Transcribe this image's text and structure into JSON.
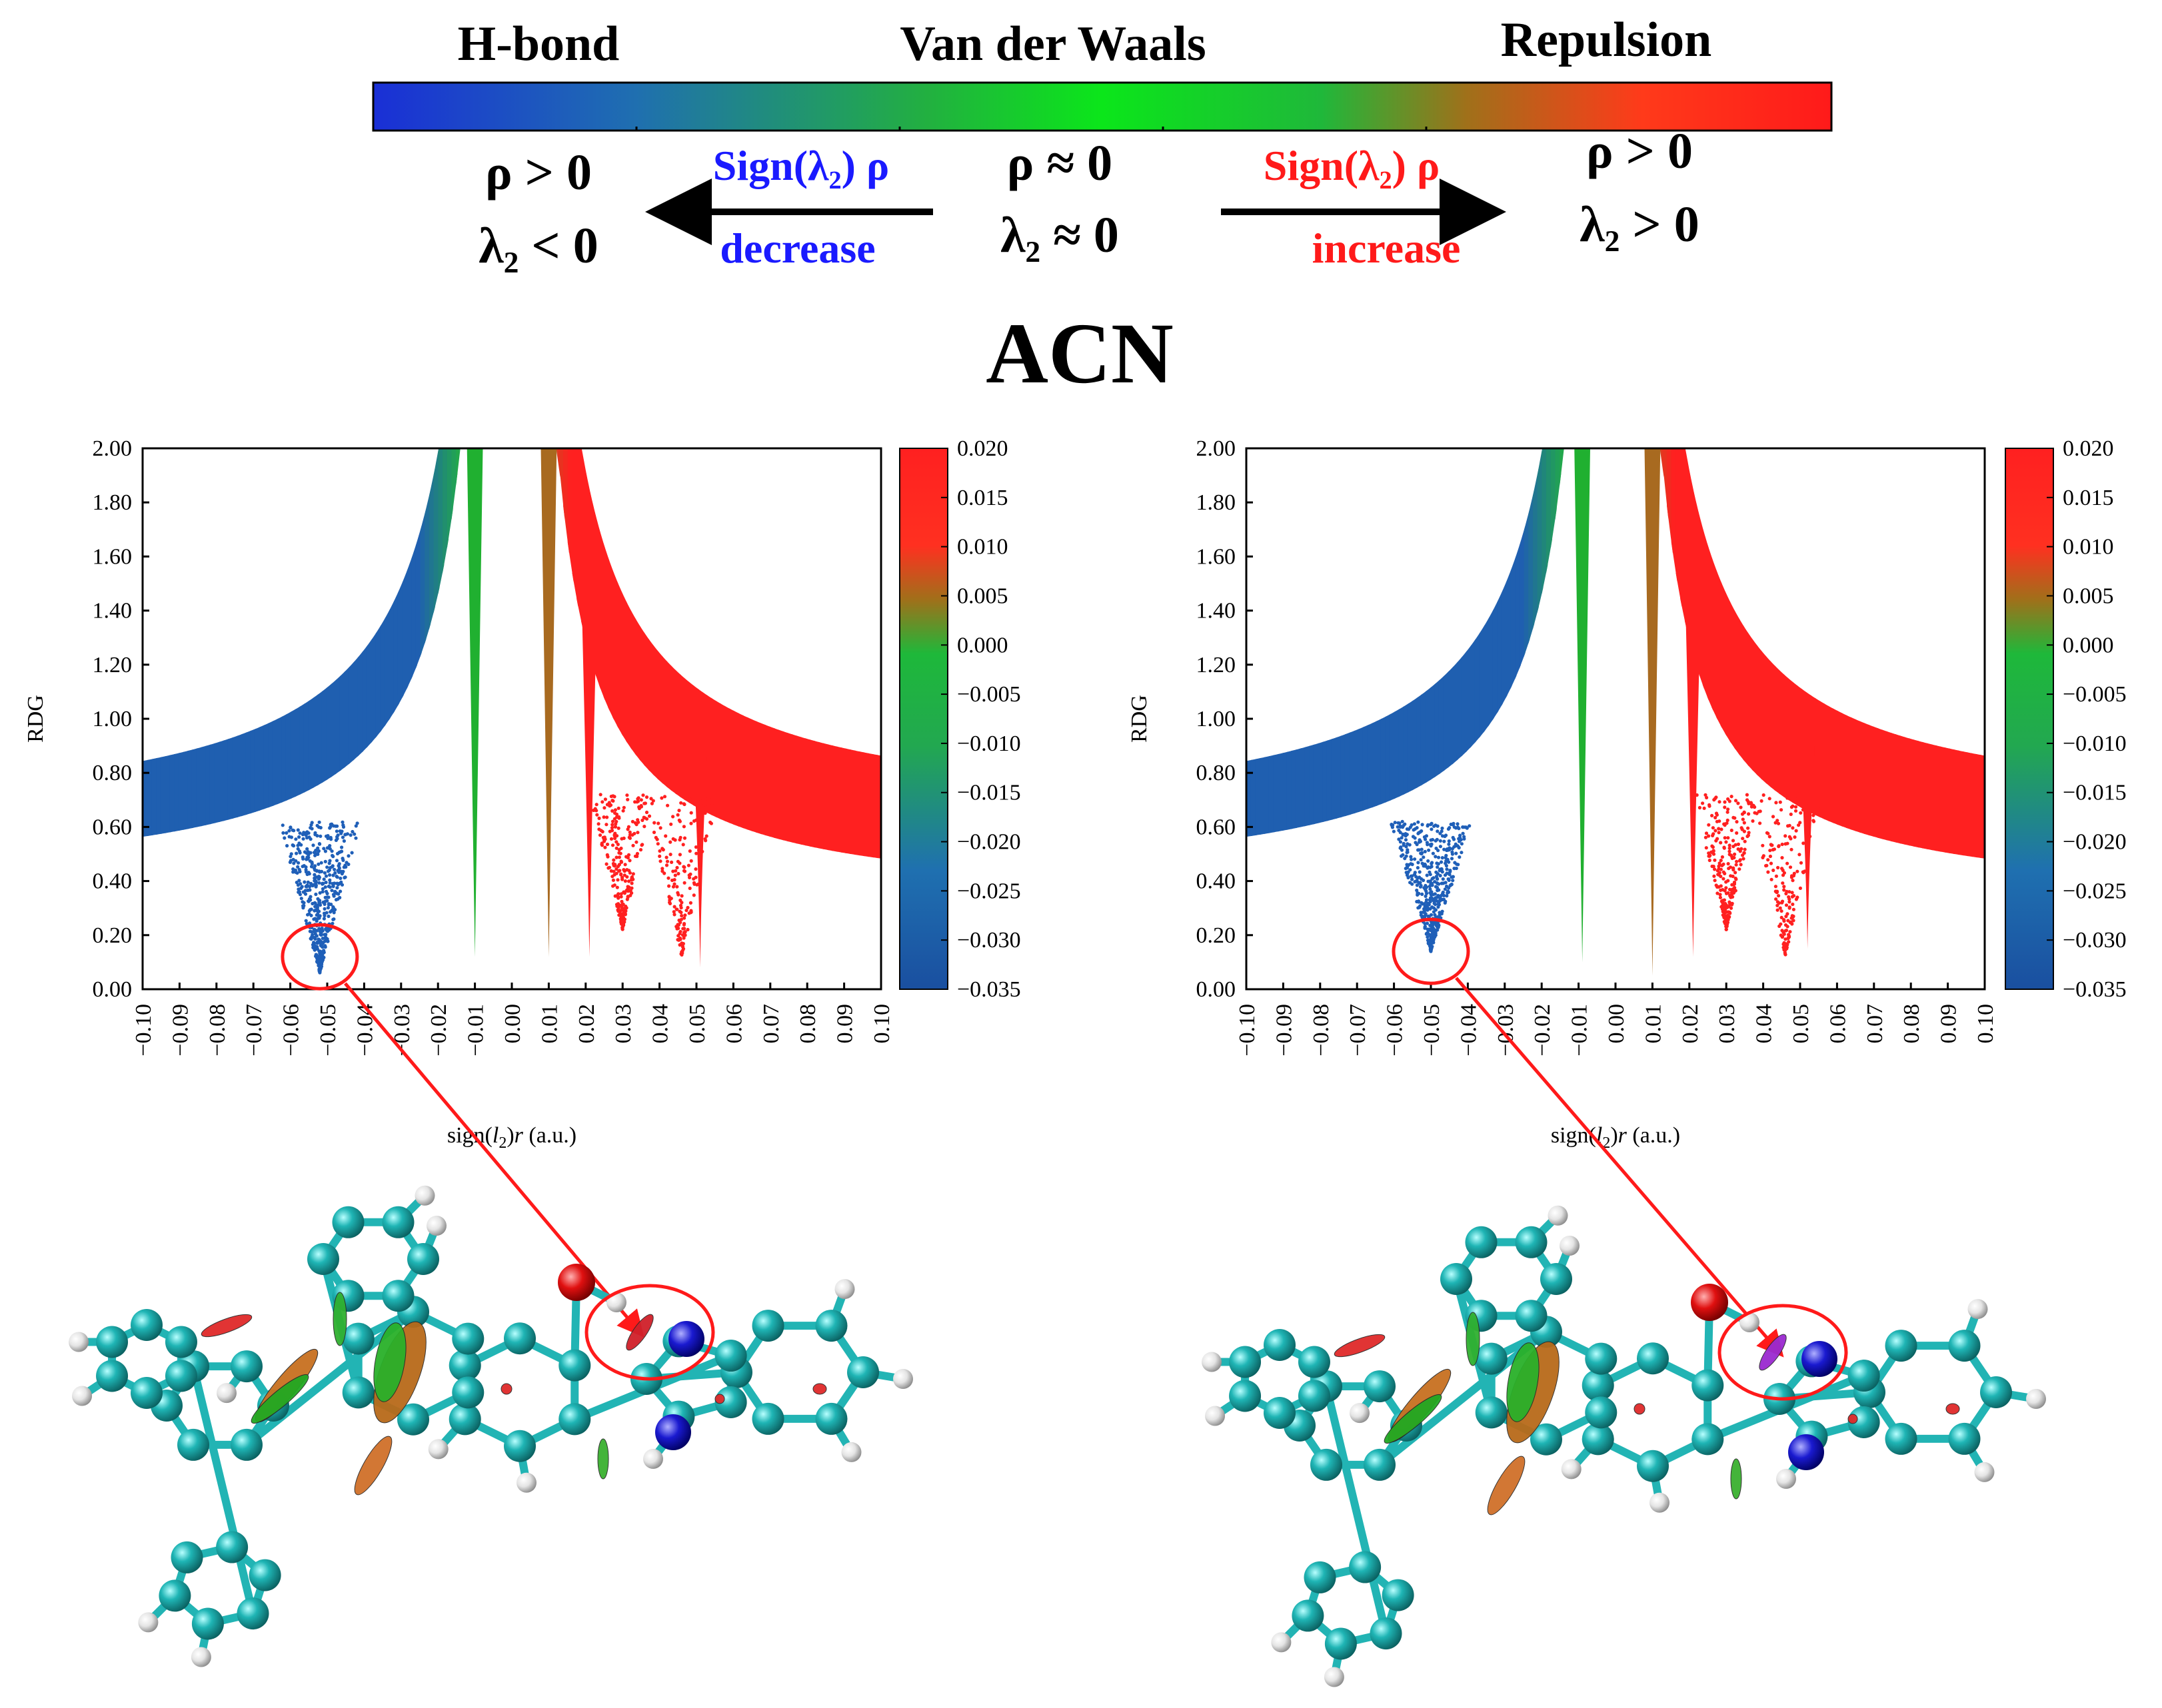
{
  "legend": {
    "labels": {
      "hbond": "H-bond",
      "vdw": "Van der Waals",
      "repulsion": "Repulsion"
    },
    "gradient_colors": [
      "#1a2fd6",
      "#1f6fb0",
      "#22b040",
      "#0be61a",
      "#1fb83a",
      "#d0701a",
      "#ff2a1a",
      "#ff1a1a"
    ],
    "left": {
      "line1": "ρ > 0",
      "line2": "λ₂ < 0"
    },
    "center": {
      "line1": "ρ ≈ 0",
      "line2": "λ₂ ≈ 0"
    },
    "right": {
      "line1": "ρ > 0",
      "line2": "λ₂ > 0"
    },
    "decrease": {
      "label": "Sign(λ₂) ρ",
      "word": "decrease",
      "color": "#1a1aff"
    },
    "increase": {
      "label": "Sign(λ₂) ρ",
      "word": "increase",
      "color": "#ff1a1a"
    }
  },
  "title": "ACN",
  "chart_data": [
    {
      "type": "scatter",
      "title": "",
      "xlabel": "sign(l2)r (a.u.)",
      "ylabel": "RDG",
      "xlim": [
        -0.1,
        0.1
      ],
      "ylim": [
        0.0,
        2.0
      ],
      "xticks": [
        "−0.10",
        "−0.09",
        "−0.08",
        "−0.07",
        "−0.06",
        "−0.05",
        "−0.04",
        "−0.03",
        "−0.02",
        "−0.01",
        "0.00",
        "0.01",
        "0.02",
        "0.03",
        "0.04",
        "0.05",
        "0.06",
        "0.07",
        "0.08",
        "0.09",
        "0.10"
      ],
      "yticks": [
        "0.00",
        "0.20",
        "0.40",
        "0.60",
        "0.80",
        "1.00",
        "1.20",
        "1.40",
        "1.60",
        "1.80",
        "2.00"
      ],
      "colorbar": {
        "min": -0.035,
        "max": 0.02,
        "ticks": [
          "0.020",
          "0.015",
          "0.010",
          "0.005",
          "0.000",
          "−0.005",
          "−0.010",
          "−0.015",
          "−0.020",
          "−0.025",
          "−0.030",
          "−0.035"
        ]
      },
      "spikes": [
        {
          "x": -0.01,
          "min_rdg": 0.12,
          "color": "#20b030"
        },
        {
          "x": 0.01,
          "min_rdg": 0.12,
          "color": "#a86a20"
        },
        {
          "x": 0.021,
          "min_rdg": 0.12,
          "color": "#ff2020"
        },
        {
          "x": 0.051,
          "min_rdg": 0.08,
          "color": "#ff2020"
        }
      ],
      "hbond_spike": {
        "x": -0.052,
        "min_rdg": 0.06,
        "color": "#1f5fb8"
      },
      "highlight": {
        "x": -0.052,
        "y": 0.12
      }
    },
    {
      "type": "scatter",
      "title": "",
      "xlabel": "sign(l2)r (a.u.)",
      "ylabel": "RDG",
      "xlim": [
        -0.1,
        0.1
      ],
      "ylim": [
        0.0,
        2.0
      ],
      "xticks": [
        "−0.10",
        "−0.09",
        "−0.08",
        "−0.07",
        "−0.06",
        "−0.05",
        "−0.04",
        "−0.03",
        "−0.02",
        "−0.01",
        "0.00",
        "0.01",
        "0.02",
        "0.03",
        "0.04",
        "0.05",
        "0.06",
        "0.07",
        "0.08",
        "0.09",
        "0.10"
      ],
      "yticks": [
        "0.00",
        "0.20",
        "0.40",
        "0.60",
        "0.80",
        "1.00",
        "1.20",
        "1.40",
        "1.60",
        "1.80",
        "2.00"
      ],
      "colorbar": {
        "min": -0.035,
        "max": 0.02,
        "ticks": [
          "0.020",
          "0.015",
          "0.010",
          "0.005",
          "0.000",
          "−0.005",
          "−0.010",
          "−0.015",
          "−0.020",
          "−0.025",
          "−0.030",
          "−0.035"
        ]
      },
      "spikes": [
        {
          "x": -0.009,
          "min_rdg": 0.1,
          "color": "#20b030"
        },
        {
          "x": 0.01,
          "min_rdg": 0.05,
          "color": "#a86a20"
        },
        {
          "x": 0.021,
          "min_rdg": 0.12,
          "color": "#ff2020"
        },
        {
          "x": 0.052,
          "min_rdg": 0.15,
          "color": "#ff2020"
        }
      ],
      "hbond_spike": {
        "x": -0.05,
        "min_rdg": 0.14,
        "color": "#1f5fb8"
      },
      "highlight": {
        "x": -0.05,
        "y": 0.14
      }
    }
  ],
  "molecule": {
    "carbon": "#1fa5a5",
    "oxygen": "#e01010",
    "nitrogen": "#1a1ad0",
    "hydrogen": "#e8e8e8",
    "bond": "#22b4b4"
  }
}
